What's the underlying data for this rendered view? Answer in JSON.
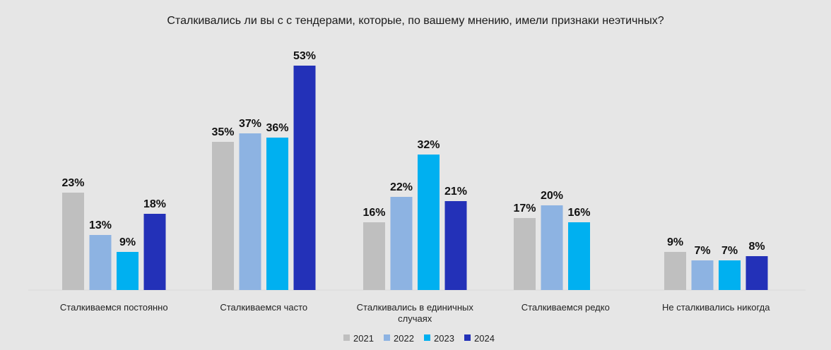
{
  "chart_data": {
    "type": "bar",
    "title": "Сталкивались ли вы с с тендерами, которые, по вашему мнению, имели признаки неэтичных?",
    "xlabel": "",
    "ylabel": "",
    "ylim": [
      0,
      55
    ],
    "grid": false,
    "legend_position": "bottom",
    "categories": [
      [
        "Сталкиваемся постоянно"
      ],
      [
        "Сталкиваемся часто"
      ],
      [
        "Сталкивались в единичных",
        "случаях"
      ],
      [
        "Сталкиваемся редко"
      ],
      [
        "Не сталкивались никогда"
      ]
    ],
    "series": [
      {
        "name": "2021",
        "color": "#bfbfbf",
        "values": [
          23,
          35,
          16,
          17,
          9
        ]
      },
      {
        "name": "2022",
        "color": "#8db3e2",
        "values": [
          13,
          37,
          22,
          20,
          7
        ]
      },
      {
        "name": "2023",
        "color": "#00b0f0",
        "values": [
          9,
          36,
          32,
          16,
          7
        ]
      },
      {
        "name": "2024",
        "color": "#2331b8",
        "values": [
          18,
          53,
          21,
          null,
          8
        ]
      }
    ],
    "value_suffix": "%"
  }
}
